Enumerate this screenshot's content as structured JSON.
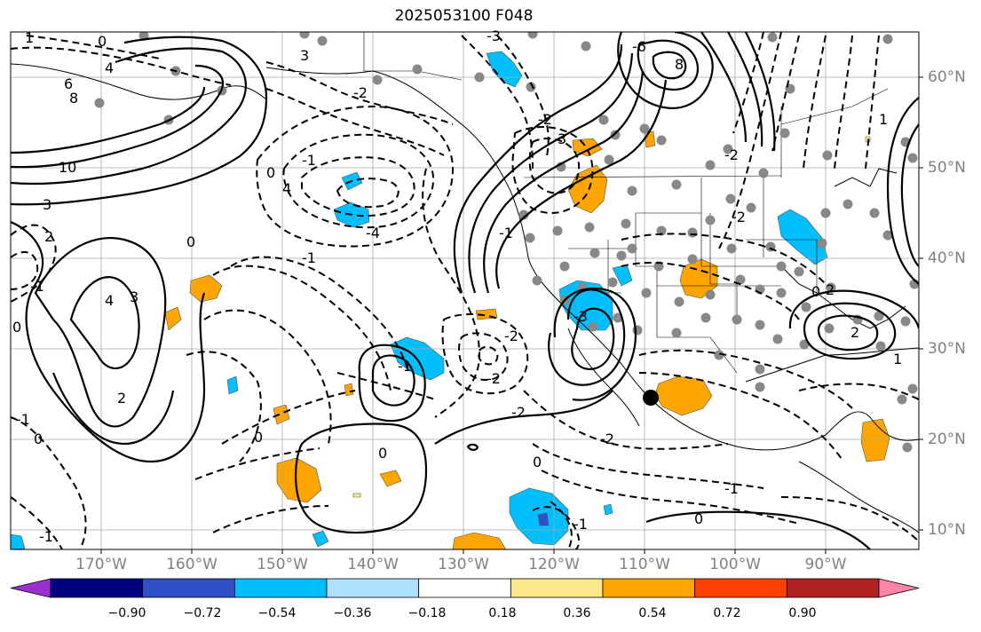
{
  "title": "2025053100 F048",
  "lat_labels": [
    {
      "text": "60°N"
    },
    {
      "text": "50°N"
    },
    {
      "text": "40°N"
    },
    {
      "text": "30°N"
    },
    {
      "text": "20°N"
    },
    {
      "text": "10°N"
    }
  ],
  "lon_labels": [
    {
      "text": "170°W"
    },
    {
      "text": "160°W"
    },
    {
      "text": "150°W"
    },
    {
      "text": "140°W"
    },
    {
      "text": "130°W"
    },
    {
      "text": "120°W"
    },
    {
      "text": "110°W"
    },
    {
      "text": "100°W"
    },
    {
      "text": "90°W"
    }
  ],
  "colorbar": {
    "colors": [
      "#9b30d0",
      "#000080",
      "#3050c8",
      "#00bfff",
      "#aee0ff",
      "#ffffff",
      "#ffe88a",
      "#ffa500",
      "#ff4000",
      "#b22222",
      "#ff85a8"
    ],
    "ticks": [
      "−0.90",
      "−0.72",
      "−0.54",
      "−0.36",
      "−0.18",
      "0.18",
      "0.36",
      "0.54",
      "0.72",
      "0.90"
    ]
  },
  "contour_labels": [
    "0",
    "1",
    "4",
    "6",
    "8",
    "10",
    "3",
    "2",
    "4",
    "3",
    "-4",
    "4",
    "3",
    "2",
    "0",
    "-2",
    "-1",
    "0",
    "-3",
    "-2",
    "-6",
    "8",
    "3",
    "-2",
    "-1",
    "-3",
    "-1",
    "-2",
    "-2",
    "2",
    "0",
    "1",
    "-1",
    "-2",
    "0",
    "0",
    "-2",
    "-1",
    "0",
    "-1",
    "0",
    "0",
    "-1",
    "2",
    "1",
    "-1",
    "0",
    "-2",
    "-1"
  ]
}
